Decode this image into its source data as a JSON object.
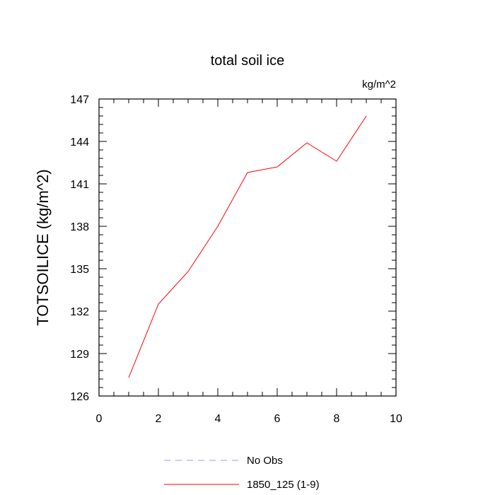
{
  "chart_data": {
    "type": "line",
    "title": "total soil ice",
    "units_label": "kg/m^2",
    "ylabel": "TOTSOILICE  (kg/m^2)",
    "xlabel": "",
    "xlim": [
      0,
      10
    ],
    "ylim": [
      126,
      147
    ],
    "xticks": [
      0,
      2,
      4,
      6,
      8,
      10
    ],
    "yticks": [
      126,
      129,
      132,
      135,
      138,
      141,
      144,
      147
    ],
    "x_minor_step": 0.5,
    "y_minor_step": 0.6,
    "grid": false,
    "legend_placement": "bottom-center",
    "series": [
      {
        "name": "1850_125 (1-9)",
        "color": "#ff0000",
        "dash": "solid",
        "x": [
          1,
          2,
          3,
          4,
          5,
          6,
          7,
          8,
          9
        ],
        "values": [
          127.3,
          132.5,
          134.8,
          138.0,
          141.8,
          142.2,
          143.9,
          142.6,
          145.8
        ]
      }
    ],
    "legend": [
      {
        "label": "No Obs",
        "color": "#9999ff",
        "dash": "dashed"
      },
      {
        "label": "1850_125 (1-9)",
        "color": "#ff0000",
        "dash": "solid"
      }
    ]
  }
}
